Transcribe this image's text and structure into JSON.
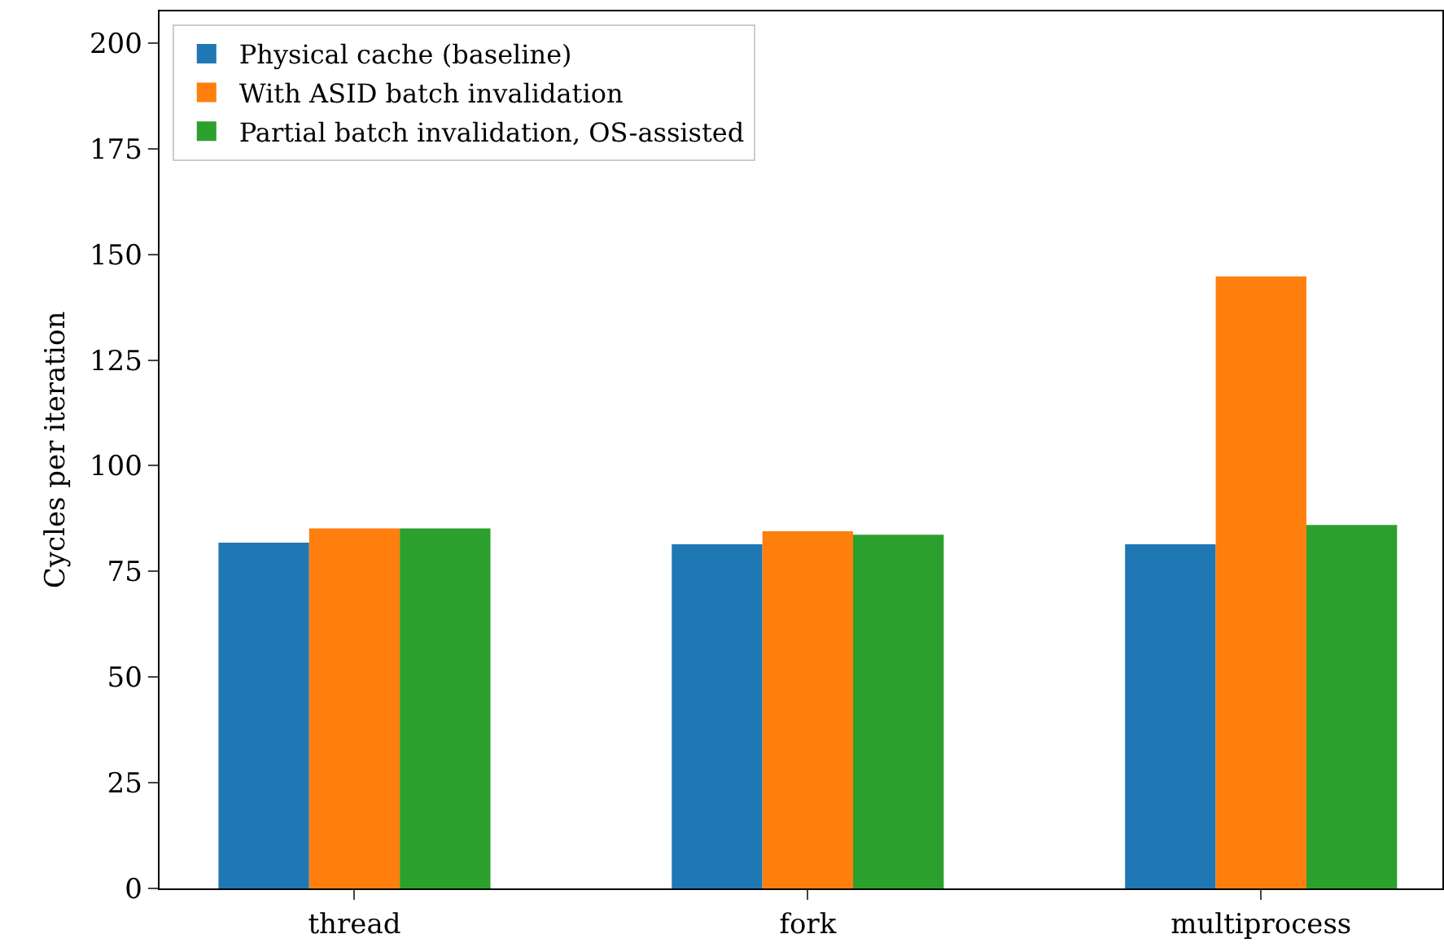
{
  "chart_data": {
    "type": "bar",
    "ylabel": "Cycles per iteration",
    "categories": [
      "thread",
      "fork",
      "multiprocess"
    ],
    "series": [
      {
        "name": "Physical cache (baseline)",
        "color": "#1f77b4",
        "values": [
          81.8,
          81.4,
          81.4
        ]
      },
      {
        "name": "With ASID batch invalidation",
        "color": "#ff7f0e",
        "values": [
          85.2,
          84.5,
          144.8
        ]
      },
      {
        "name": "Partial batch invalidation, OS-assisted",
        "color": "#2ca02c",
        "values": [
          85.2,
          83.7,
          86.0
        ]
      }
    ],
    "ylim": [
      0,
      207.5
    ],
    "yticks": [
      0,
      25,
      50,
      75,
      100,
      125,
      150,
      175,
      200
    ],
    "grid": false,
    "legend": "top left"
  }
}
